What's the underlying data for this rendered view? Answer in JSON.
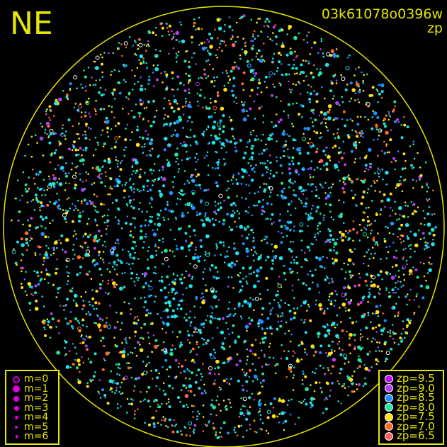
{
  "header": {
    "direction": "NE",
    "image_id": "03k61078o0396w",
    "color_key": "zp"
  },
  "chart_data": {
    "type": "scatter",
    "title": "03k61078o0396w",
    "color_variable": "zp",
    "size_variable": "m",
    "grid": false,
    "size_legend": {
      "placement": "bottom-left",
      "entries": [
        {
          "label": "m=0",
          "marker": "open-circle"
        },
        {
          "label": "m=1",
          "marker": "filled-circle"
        },
        {
          "label": "m=2",
          "marker": "filled-circle"
        },
        {
          "label": "m=3",
          "marker": "filled-circle"
        },
        {
          "label": "m=4",
          "marker": "filled-circle"
        },
        {
          "label": "m=5",
          "marker": "filled-circle"
        },
        {
          "label": "m=6",
          "marker": "filled-circle"
        }
      ]
    },
    "color_legend": {
      "placement": "bottom-right",
      "entries": [
        {
          "label": "zp=9.5",
          "value": 9.5,
          "color": "#c010f0"
        },
        {
          "label": "zp=9.0",
          "value": 9.0,
          "color": "#b040f0"
        },
        {
          "label": "zp=8.5",
          "value": 8.5,
          "color": "#2090ff"
        },
        {
          "label": "zp=8.0",
          "value": 8.0,
          "color": "#20e8a0"
        },
        {
          "label": "zp=7.5",
          "value": 7.5,
          "color": "#ffe010"
        },
        {
          "label": "zp=7.0",
          "value": 7.0,
          "color": "#ff6820"
        },
        {
          "label": "zp=6.5",
          "value": 6.5,
          "color": "#ff6060"
        }
      ]
    }
  },
  "colors": {
    "frame": "#e6e600",
    "background": "#000000",
    "legend_m": "#e000e0"
  }
}
